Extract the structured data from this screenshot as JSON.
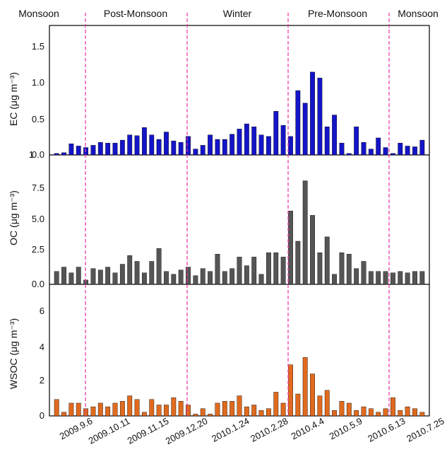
{
  "chart_data": {
    "type": "bar",
    "x_tick_labels": [
      "2009.9.6",
      "2009.10.11",
      "2009.11.15",
      "2009.12.20",
      "2010.1.24",
      "2010.2.28",
      "2010.4.4",
      "2010.5.9",
      "2010.6.13",
      "2010.7.25"
    ],
    "seasons": [
      "Monsoon",
      "Post-Monsoon",
      "Winter",
      "Pre-Monsoon",
      "Monsoon"
    ],
    "panels": [
      {
        "key": "ec",
        "ylabel": "EC (μg m⁻³)",
        "ylim": [
          0,
          1.75
        ],
        "yticks": [
          "0.0",
          "0.5",
          "1.0",
          "1.5"
        ],
        "color": "#1414c8",
        "values": [
          0.02,
          0.03,
          0.15,
          0.12,
          0.1,
          0.13,
          0.17,
          0.16,
          0.16,
          0.2,
          0.27,
          0.26,
          0.37,
          0.27,
          0.21,
          0.31,
          0.19,
          0.17,
          0.25,
          0.08,
          0.13,
          0.27,
          0.21,
          0.21,
          0.28,
          0.35,
          0.42,
          0.38,
          0.27,
          0.25,
          0.59,
          0.4,
          0.25,
          0.87,
          0.7,
          1.12,
          1.04,
          0.38,
          0.54,
          0.16,
          0.02,
          0.38,
          0.17,
          0.08,
          0.23,
          0.1,
          0.02,
          0.16,
          0.12,
          0.11,
          0.2
        ]
      },
      {
        "key": "oc",
        "ylabel": "OC (μg m⁻³)",
        "ylim": [
          0,
          9
        ],
        "yticks": [
          "0.0",
          "2.5",
          "5.0",
          "7.5"
        ],
        "color": "#555555",
        "values": [
          0.9,
          1.2,
          0.8,
          1.2,
          0.3,
          1.1,
          1.0,
          1.2,
          0.8,
          1.4,
          2.0,
          1.6,
          0.8,
          1.6,
          2.5,
          0.9,
          0.7,
          1.0,
          1.2,
          0.6,
          1.1,
          0.9,
          2.1,
          0.9,
          1.1,
          1.9,
          1.3,
          1.9,
          0.7,
          2.2,
          2.2,
          1.9,
          5.1,
          3.0,
          7.2,
          4.8,
          2.2,
          3.3,
          0.7,
          2.2,
          2.1,
          1.1,
          1.6,
          0.9,
          0.9,
          0.9,
          0.8,
          0.9,
          0.8,
          0.9,
          0.9
        ]
      },
      {
        "key": "wsoc",
        "ylabel": "WSOC (μg m⁻³)",
        "ylim": [
          0,
          7.2
        ],
        "yticks": [
          "0",
          "2",
          "4",
          "6"
        ],
        "color": "#e06a1e",
        "values": [
          0.9,
          0.2,
          0.7,
          0.7,
          0.4,
          0.5,
          0.7,
          0.5,
          0.7,
          0.8,
          1.1,
          0.9,
          0.2,
          0.9,
          0.6,
          0.6,
          1.0,
          0.8,
          0.6,
          0.1,
          0.4,
          0.1,
          0.7,
          0.8,
          0.8,
          1.1,
          0.5,
          0.6,
          0.3,
          0.4,
          1.3,
          0.7,
          2.8,
          1.2,
          3.2,
          2.3,
          1.1,
          1.4,
          0.3,
          0.8,
          0.7,
          0.3,
          0.5,
          0.4,
          0.2,
          0.4,
          1.0,
          0.3,
          0.5,
          0.4,
          0.2
        ]
      }
    ]
  }
}
